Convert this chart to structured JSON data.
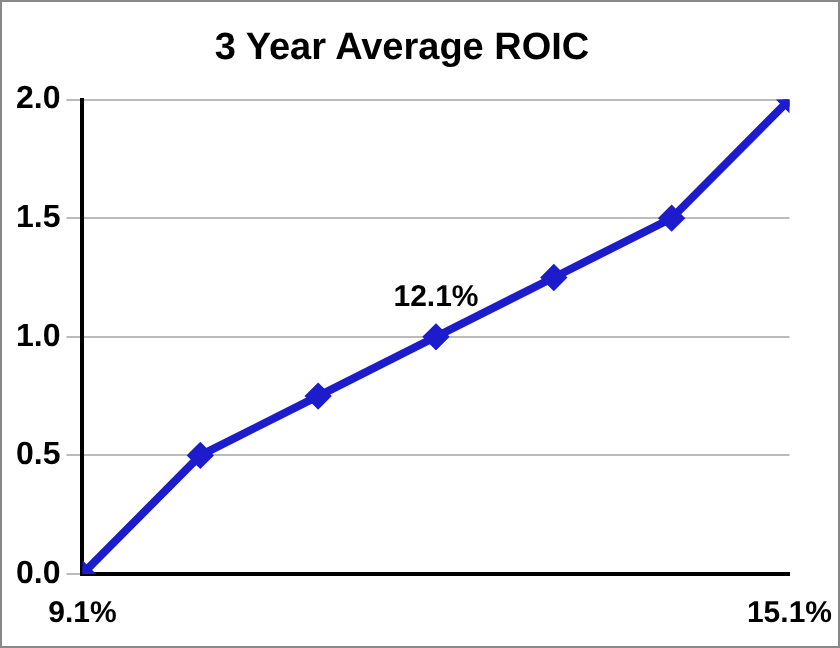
{
  "chart_data": {
    "type": "line",
    "title": "3 Year Average ROIC",
    "x": [
      9.1,
      10.1,
      11.1,
      12.1,
      13.1,
      14.1,
      15.1
    ],
    "series": [
      {
        "color": "#1c1ccc",
        "values": [
          0,
          0.5,
          0.75,
          1.0,
          1.25,
          1.5,
          2.0
        ]
      }
    ],
    "xlim": [
      9.1,
      15.1
    ],
    "xticks": [
      {
        "value": 9.1,
        "label": "9.1%"
      },
      {
        "value": 15.1,
        "label": "15.1%"
      }
    ],
    "ylim": [
      0,
      2
    ],
    "yticks": [
      {
        "value": 0,
        "label": "0.0"
      },
      0.5,
      {
        "value": 1,
        "label": "1.0"
      },
      1.5,
      {
        "value": 2,
        "label": "2.0"
      }
    ],
    "annotations": [
      {
        "text": "12.1%",
        "x": 12.1,
        "y": 1.0
      }
    ],
    "grid": "y",
    "marker": "diamond",
    "line_style": "solid",
    "legend": false
  }
}
